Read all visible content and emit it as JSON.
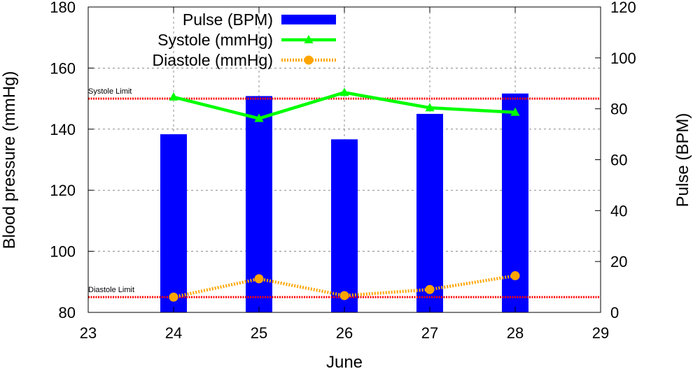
{
  "chart_data": {
    "type": "bar+line",
    "x_axis": {
      "label": "June",
      "range": [
        23,
        29
      ],
      "ticks": [
        23,
        24,
        25,
        26,
        27,
        28,
        29
      ]
    },
    "y_left": {
      "label": "Blood pressure (mmHg)",
      "range": [
        80,
        180
      ],
      "ticks": [
        80,
        100,
        120,
        140,
        160,
        180
      ]
    },
    "y_right": {
      "label": "Pulse (BPM)",
      "range": [
        0,
        120
      ],
      "ticks": [
        0,
        20,
        40,
        60,
        80,
        100,
        120
      ]
    },
    "grid": true,
    "legend_position": "top-center",
    "series": [
      {
        "name": "Pulse (BPM)",
        "type": "bar",
        "axis": "right",
        "color": "#0000ff",
        "x": [
          24,
          25,
          26,
          27,
          28
        ],
        "values": [
          70,
          85,
          68,
          78,
          86
        ]
      },
      {
        "name": "Systole (mmHg)",
        "type": "line",
        "axis": "left",
        "color": "#00ff00",
        "marker": "triangle",
        "x": [
          24,
          25,
          26,
          27,
          28
        ],
        "values": [
          150.5,
          143.5,
          152,
          147,
          145.5
        ]
      },
      {
        "name": "Diastole (mmHg)",
        "type": "line",
        "axis": "left",
        "color": "#ffa500",
        "marker": "circle",
        "x": [
          24,
          25,
          26,
          27,
          28
        ],
        "values": [
          85,
          91,
          85.5,
          87.5,
          92
        ]
      }
    ],
    "reference_lines": [
      {
        "label": "Systole Limit",
        "axis": "left",
        "value": 150,
        "color": "#ff0000"
      },
      {
        "label": "Diastole Limit",
        "axis": "left",
        "value": 85,
        "color": "#ff0000"
      }
    ]
  }
}
